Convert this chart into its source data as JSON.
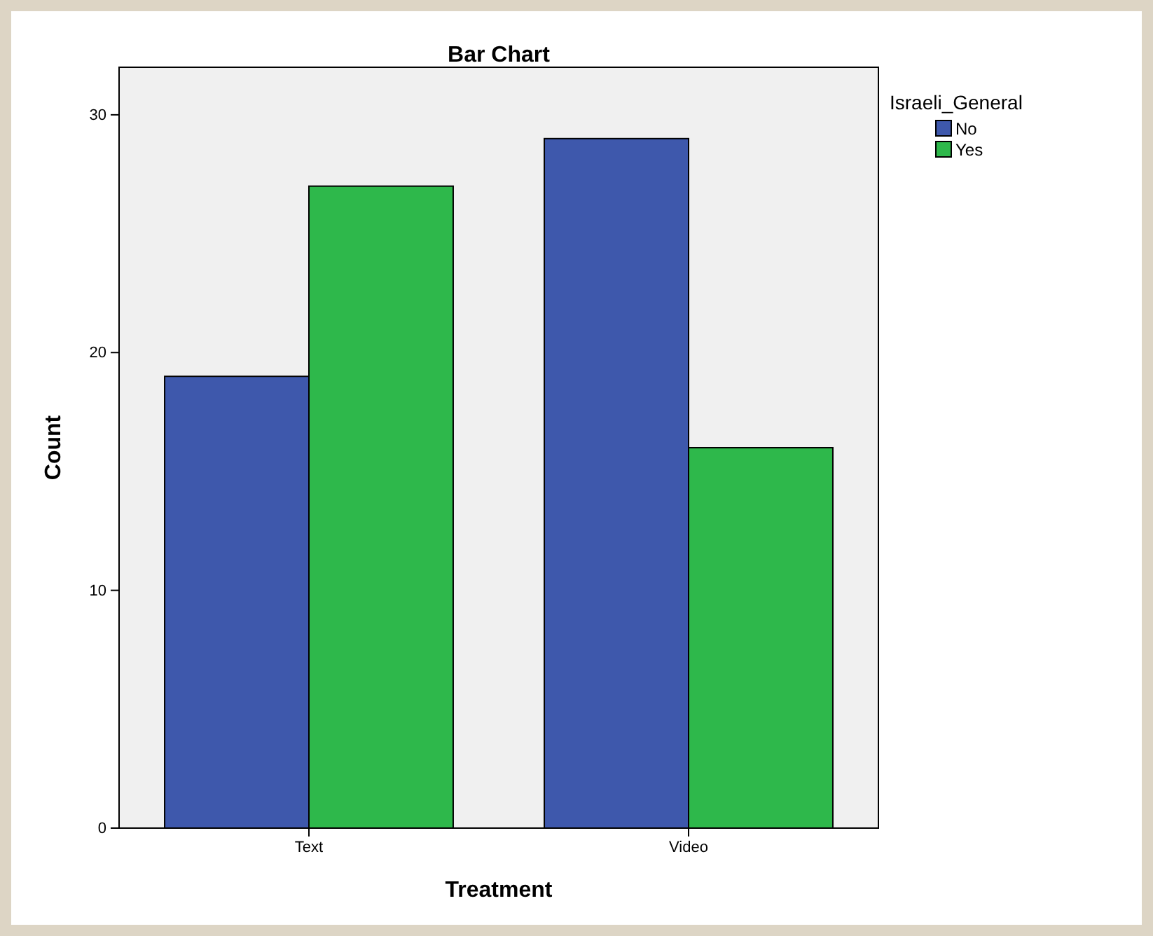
{
  "chart_data": {
    "type": "bar",
    "title": "Bar Chart",
    "xlabel": "Treatment",
    "ylabel": "Count",
    "legend_title": "Israeli_General",
    "categories": [
      "Text",
      "Video"
    ],
    "series": [
      {
        "name": "No",
        "color": "#3e58ac",
        "values": [
          19,
          29
        ]
      },
      {
        "name": "Yes",
        "color": "#2eb84b",
        "values": [
          27,
          16
        ]
      }
    ],
    "ylim": [
      0,
      32
    ],
    "yticks": [
      0,
      10,
      20,
      30
    ],
    "grid": false,
    "legend": "top right"
  }
}
